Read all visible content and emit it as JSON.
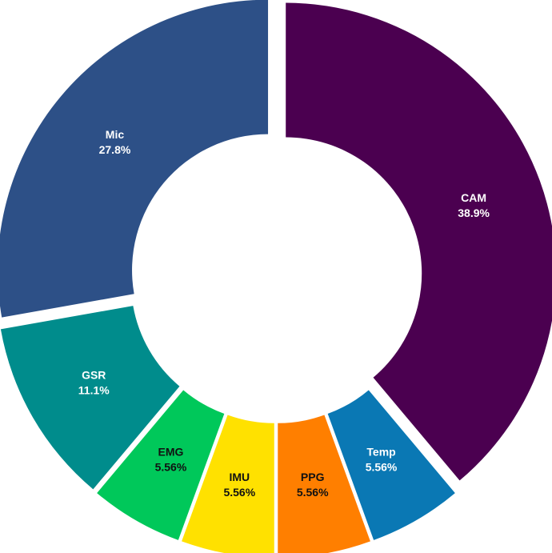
{
  "chart_data": {
    "type": "pie",
    "variant": "donut",
    "title": "",
    "slices": [
      {
        "label": "CAM",
        "value": 38.9,
        "pct_label": "38.9%",
        "color": "#4b0050",
        "text_color": "#ffffff"
      },
      {
        "label": "Temp",
        "value": 5.56,
        "pct_label": "5.56%",
        "color": "#0a78b4",
        "text_color": "#ffffff"
      },
      {
        "label": "PPG",
        "value": 5.56,
        "pct_label": "5.56%",
        "color": "#ff7f00",
        "text_color": "#111111"
      },
      {
        "label": "IMU",
        "value": 5.56,
        "pct_label": "5.56%",
        "color": "#ffe100",
        "text_color": "#111111"
      },
      {
        "label": "EMG",
        "value": 5.56,
        "pct_label": "5.56%",
        "color": "#00c85a",
        "text_color": "#111111"
      },
      {
        "label": "GSR",
        "value": 11.1,
        "pct_label": "11.1%",
        "color": "#008c8c",
        "text_color": "#ffffff"
      },
      {
        "label": "Mic",
        "value": 27.8,
        "pct_label": "27.8%",
        "color": "#2d5087",
        "text_color": "#ffffff"
      }
    ]
  }
}
